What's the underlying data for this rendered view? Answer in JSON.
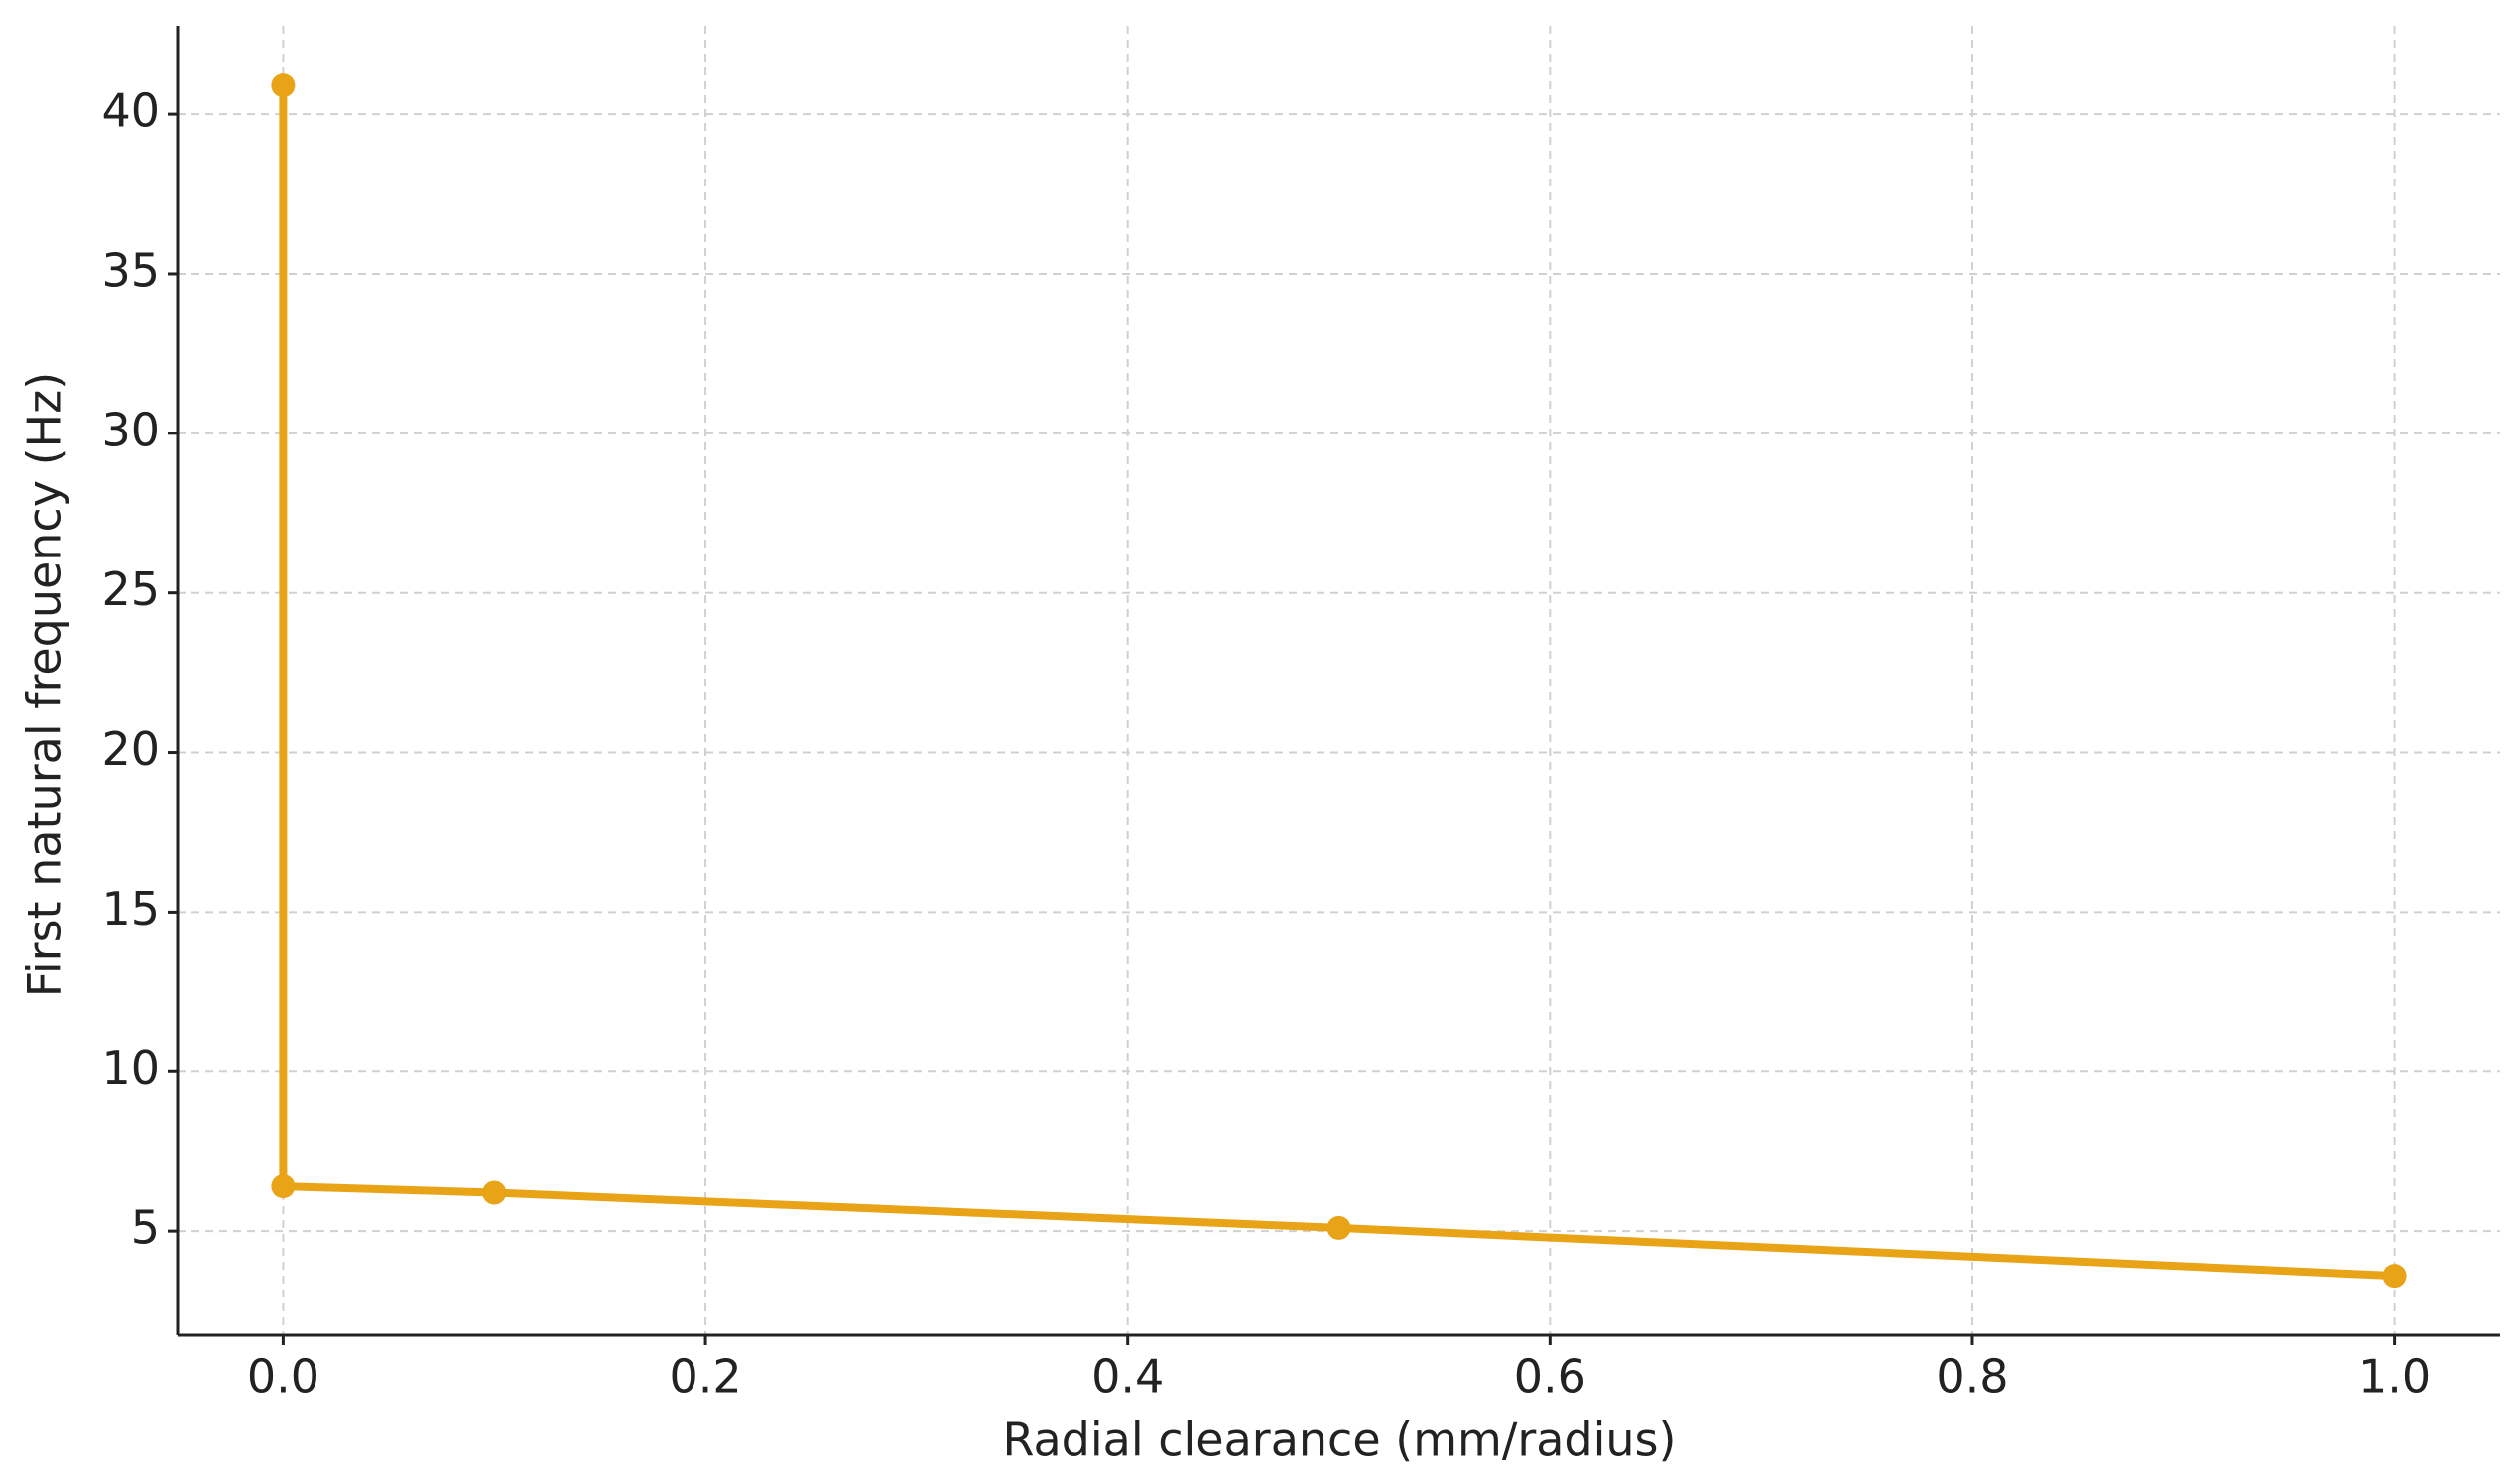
{
  "chart_data": {
    "type": "line",
    "xlabel": "Radial clearance (mm/radius)",
    "ylabel": "First natural frequency (Hz)",
    "x": [
      0.0,
      0.0,
      0.1,
      0.5,
      1.0
    ],
    "series": [
      {
        "color": "#e8a317",
        "values": [
          40.9,
          6.4,
          6.2,
          5.1,
          3.6
        ]
      }
    ],
    "xlim": [
      -0.05,
      1.05
    ],
    "xticks": [
      {
        "value": 0,
        "label": "0.0"
      },
      0.2,
      0.4,
      0.6,
      0.8,
      {
        "value": 1,
        "label": "1.0"
      }
    ],
    "ylim": [
      1.74,
      42.77
    ],
    "yticks": [
      5,
      10,
      15,
      20,
      25,
      30,
      35,
      40
    ],
    "grid": true
  }
}
